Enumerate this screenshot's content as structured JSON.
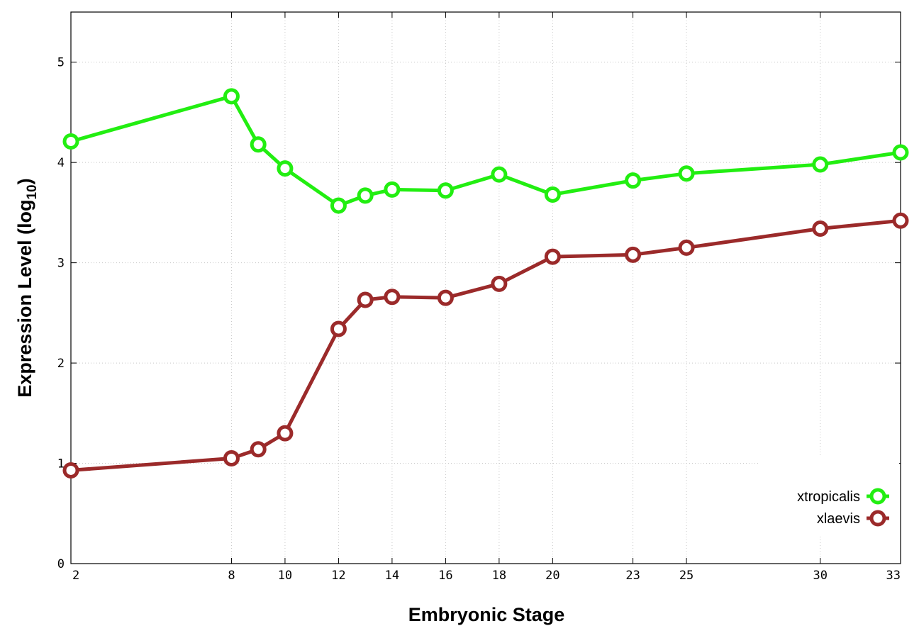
{
  "chart_data": {
    "type": "line",
    "xlabel": "Embryonic Stage",
    "ylabel_main": "Expression Level (log",
    "ylabel_sub": "10",
    "ylabel_close": ")",
    "xlim": [
      2,
      33
    ],
    "ylim": [
      0,
      5.5
    ],
    "x_ticks": [
      2,
      8,
      10,
      12,
      14,
      16,
      18,
      20,
      23,
      25,
      30,
      33
    ],
    "y_ticks": [
      0,
      1,
      2,
      3,
      4,
      5
    ],
    "grid": true,
    "legend_position": "bottom-right",
    "x": [
      2,
      8,
      9,
      10,
      12,
      13,
      14,
      16,
      18,
      20,
      23,
      25,
      30,
      33
    ],
    "series": [
      {
        "name": "xtropicalis",
        "color": "#22ee11",
        "values": [
          4.21,
          4.66,
          4.18,
          3.94,
          3.57,
          3.67,
          3.73,
          3.72,
          3.88,
          3.68,
          3.82,
          3.89,
          3.98,
          4.1
        ]
      },
      {
        "name": "xlaevis",
        "color": "#9b2a2a",
        "values": [
          0.93,
          1.05,
          1.14,
          1.3,
          2.34,
          2.63,
          2.66,
          2.65,
          2.79,
          3.06,
          3.08,
          3.15,
          3.34,
          3.42
        ]
      }
    ]
  }
}
